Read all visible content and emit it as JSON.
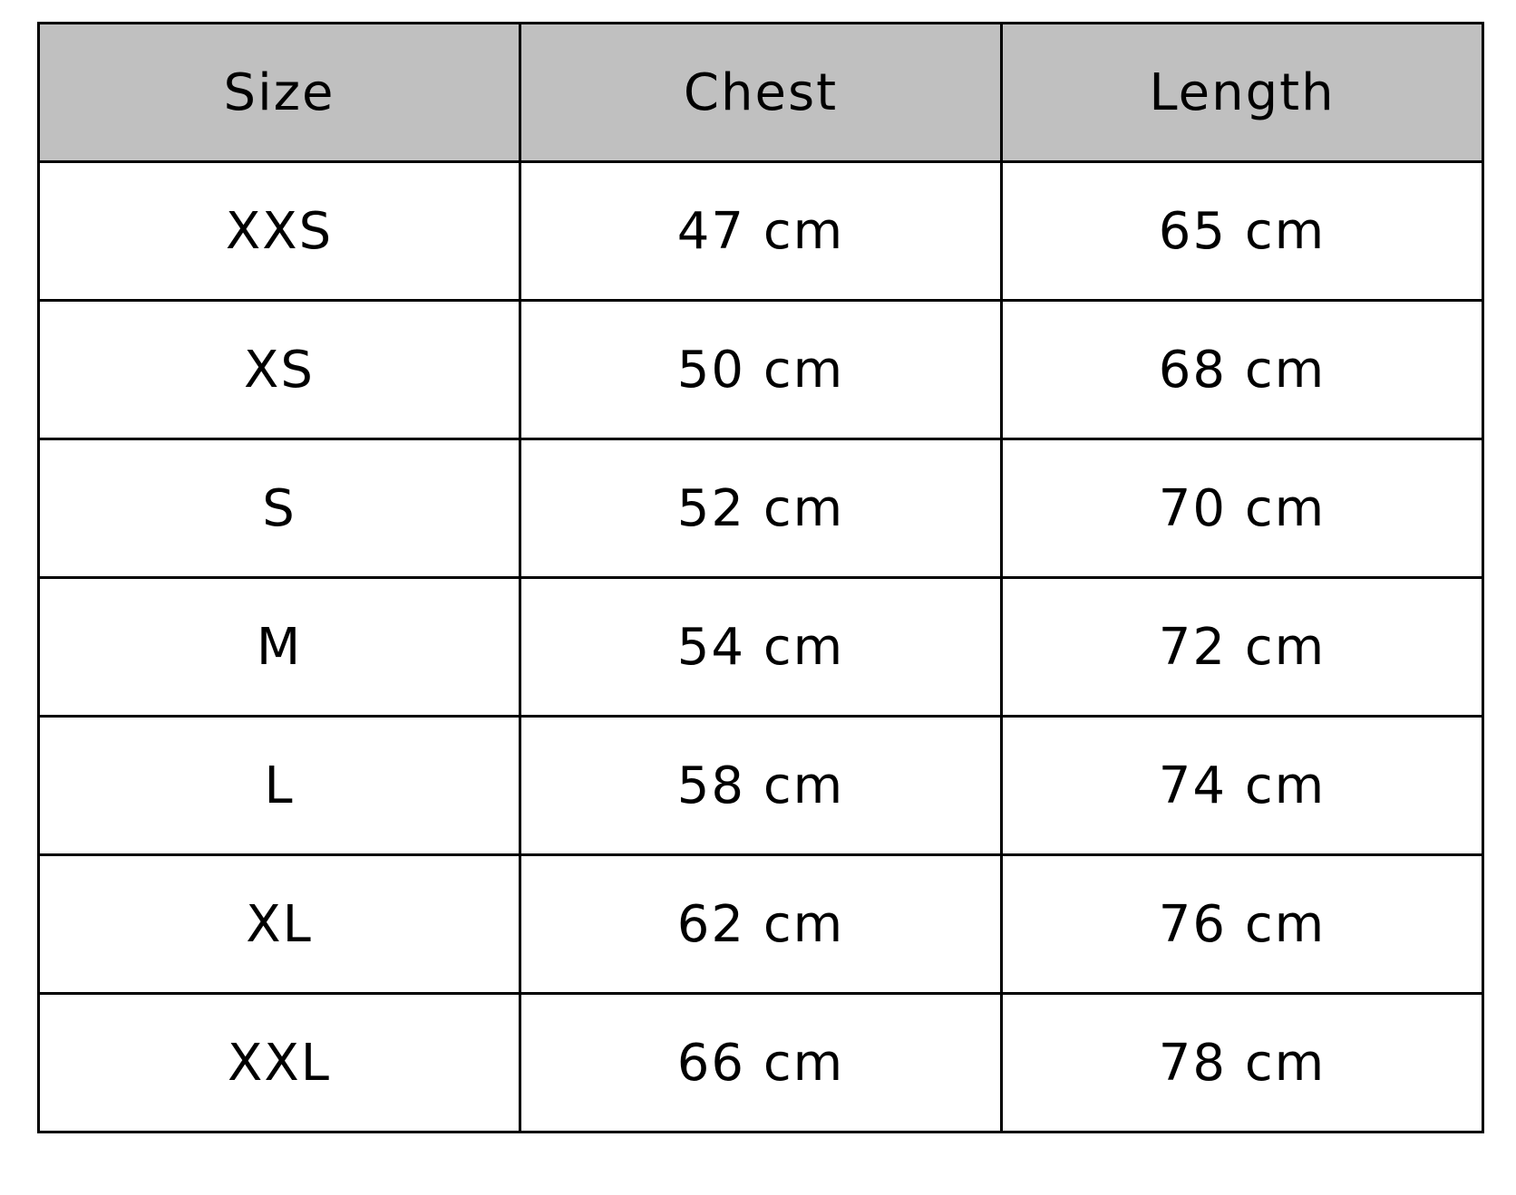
{
  "table": {
    "headers": [
      "Size",
      "Chest",
      "Length"
    ],
    "rows": [
      [
        "XXS",
        "47 cm",
        "65 cm"
      ],
      [
        "XS",
        "50 cm",
        "68 cm"
      ],
      [
        "S",
        "52 cm",
        "70 cm"
      ],
      [
        "M",
        "54 cm",
        "72 cm"
      ],
      [
        "L",
        "58 cm",
        "74 cm"
      ],
      [
        "XL",
        "62 cm",
        "76 cm"
      ],
      [
        "XXL",
        "66 cm",
        "78 cm"
      ]
    ],
    "header_color": "#c0c0c0"
  }
}
